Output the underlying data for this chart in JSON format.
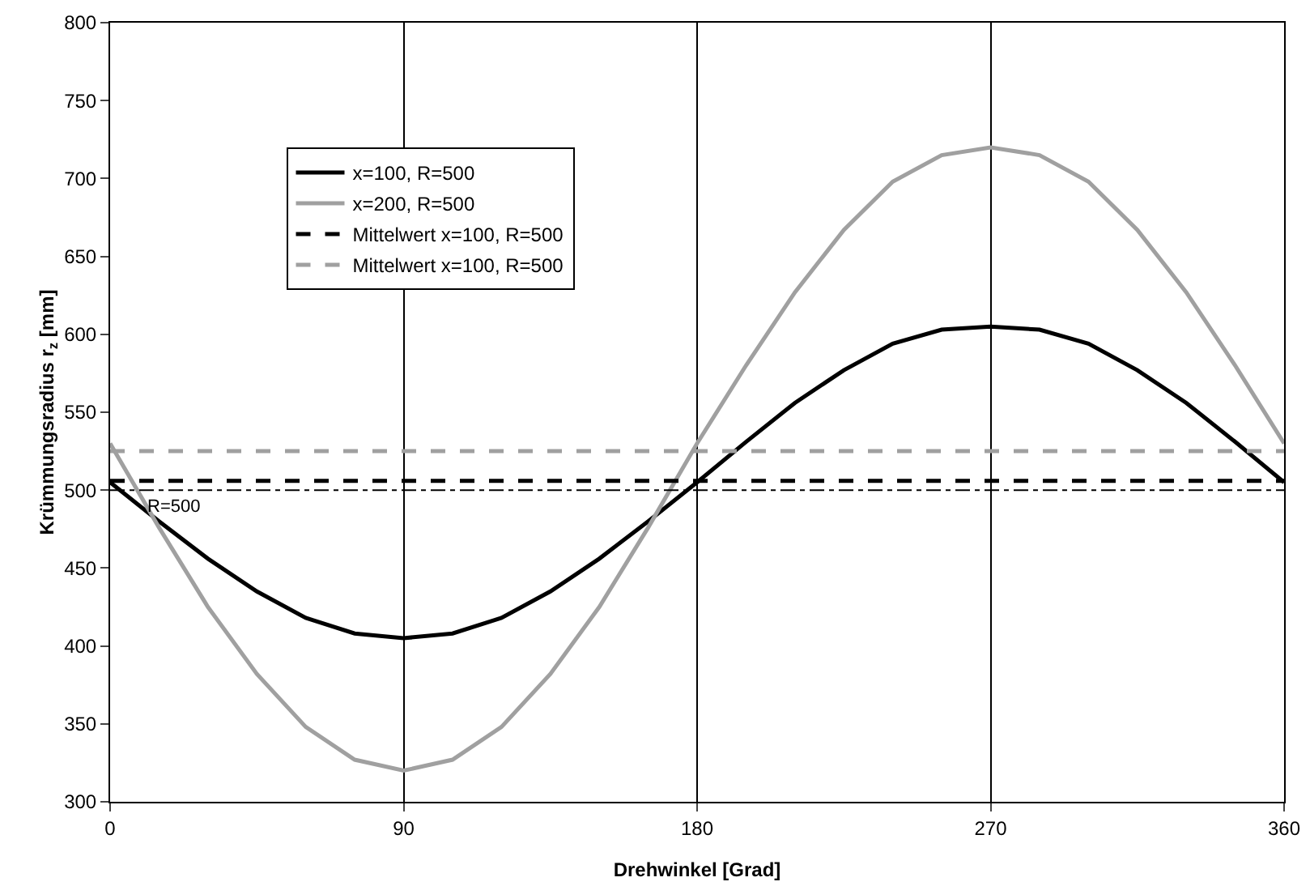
{
  "chart_data": {
    "type": "line",
    "xlabel": "Drehwinkel [Grad]",
    "ylabel": "Krümmungsradius r$_{z}$ [mm]",
    "xlim": [
      0,
      360
    ],
    "xticks": [
      0,
      90,
      180,
      270,
      360
    ],
    "ylim": [
      300,
      800
    ],
    "yticks": [
      300,
      350,
      400,
      450,
      500,
      550,
      600,
      650,
      700,
      750,
      800
    ],
    "grid": "x",
    "legend": "top left",
    "marker": "none",
    "series": [
      {
        "name": "x=100, R=500",
        "color": "#000000",
        "line_style": "solid",
        "x": [
          0,
          15,
          30,
          45,
          60,
          75,
          90,
          105,
          120,
          135,
          150,
          165,
          180,
          195,
          210,
          225,
          240,
          255,
          270,
          285,
          300,
          315,
          330,
          345,
          360
        ],
        "values": [
          505,
          480,
          456,
          435,
          418,
          408,
          405,
          408,
          418,
          435,
          456,
          480,
          505,
          531,
          556,
          577,
          594,
          603,
          605,
          603,
          594,
          577,
          556,
          531,
          505
        ]
      },
      {
        "name": "x=200, R=500",
        "color": "#a0a0a0",
        "line_style": "solid",
        "x": [
          0,
          15,
          30,
          45,
          60,
          75,
          90,
          105,
          120,
          135,
          150,
          165,
          180,
          195,
          210,
          225,
          240,
          255,
          270,
          285,
          300,
          315,
          330,
          345,
          360
        ],
        "values": [
          530,
          476,
          425,
          382,
          348,
          327,
          320,
          327,
          348,
          382,
          425,
          476,
          530,
          580,
          627,
          667,
          698,
          715,
          720,
          715,
          698,
          667,
          627,
          580,
          530
        ]
      },
      {
        "name": "Mittelwert x=100, R=500",
        "color": "#000000",
        "line_style": "dashed",
        "x": [
          0,
          360
        ],
        "values": [
          506,
          506
        ]
      },
      {
        "name": "Mittelwert x=100, R=500",
        "color": "#a0a0a0",
        "line_style": "dashed",
        "x": [
          0,
          360
        ],
        "values": [
          525,
          525
        ]
      }
    ],
    "ref_lines": [
      {
        "axis": "y",
        "value": 500,
        "label": "R=500",
        "color": "#000000",
        "line_style": "dashdot"
      }
    ]
  }
}
